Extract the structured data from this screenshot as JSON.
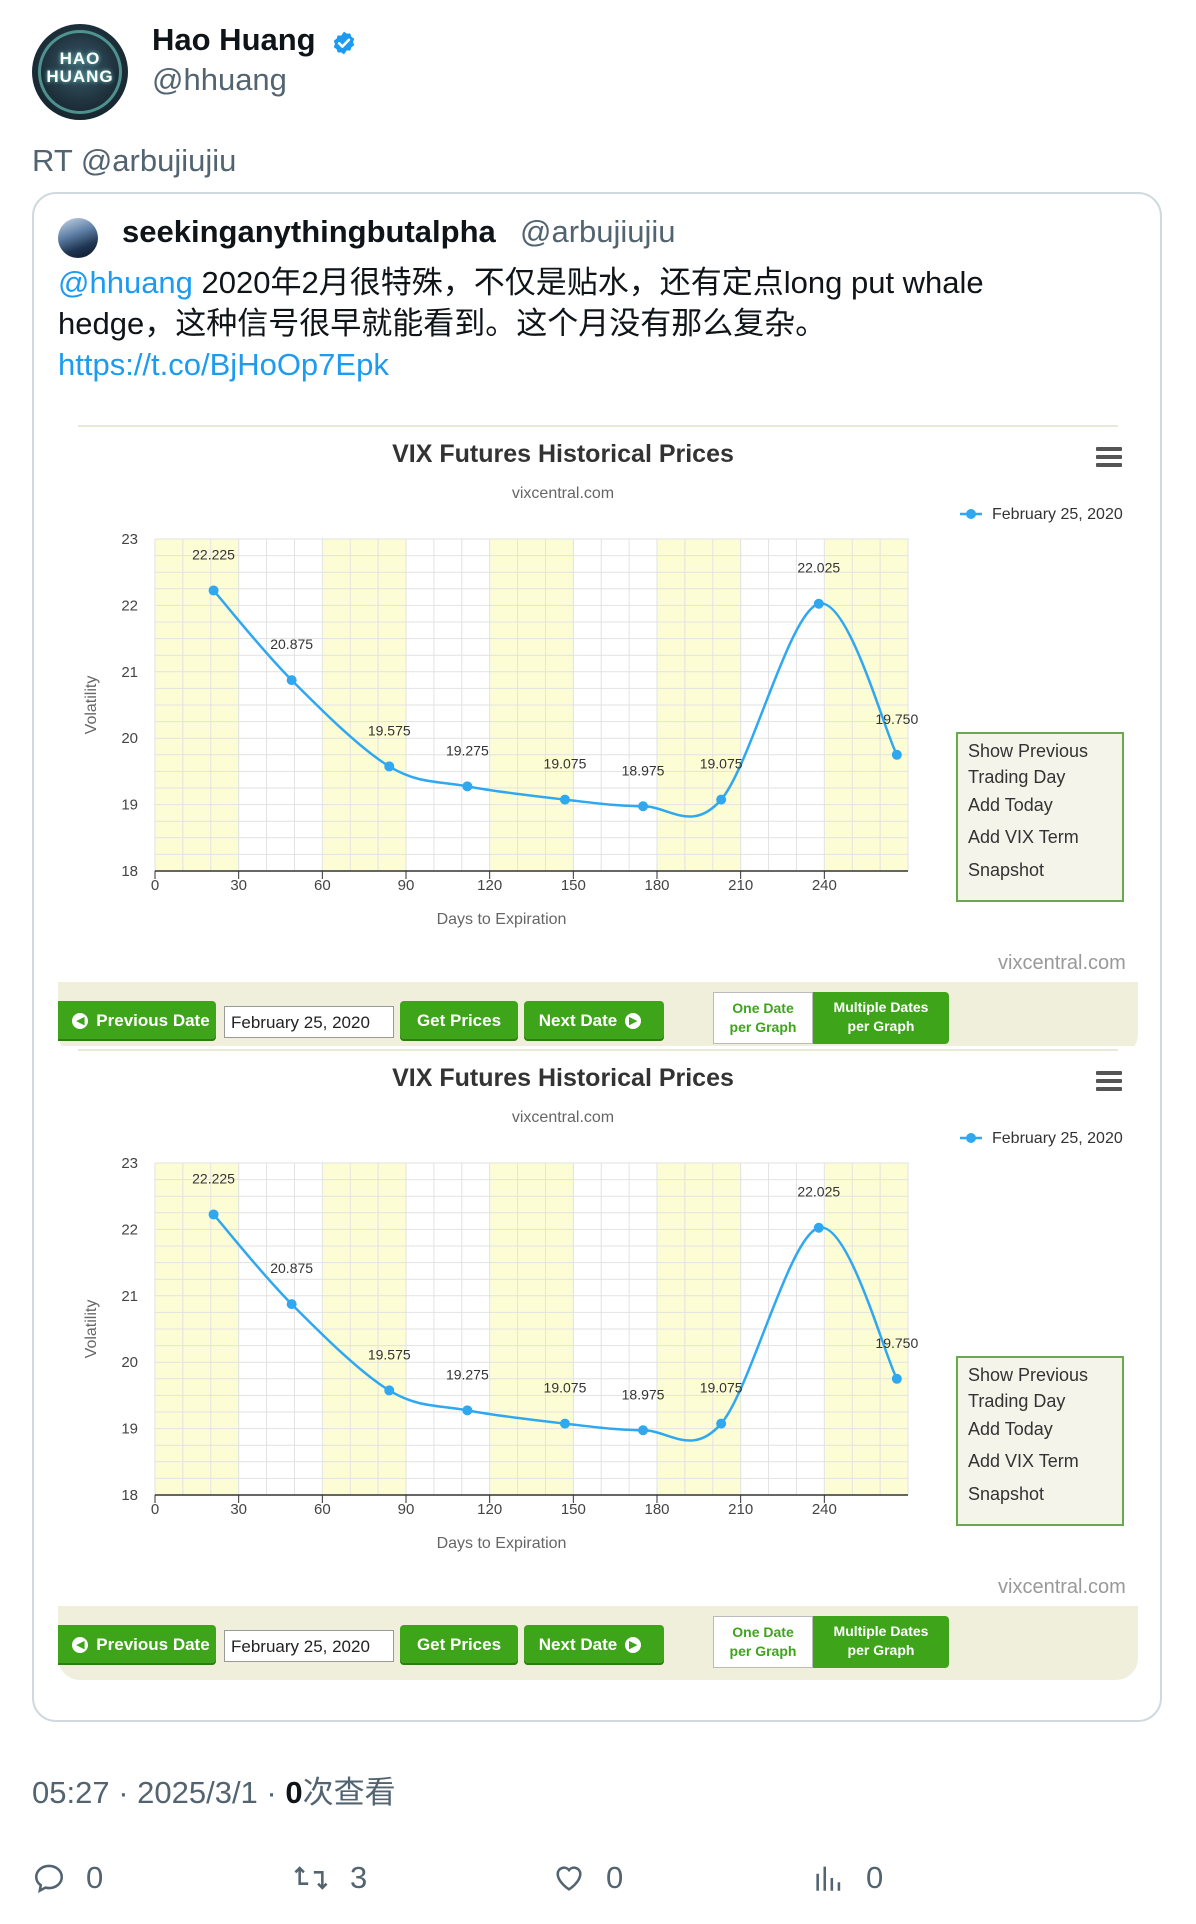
{
  "author": {
    "name": "Hao Huang",
    "handle": "@hhuang",
    "avatar_text_top": "HAO",
    "avatar_text_bottom": "HUANG",
    "verified_icon": "verified-badge-icon"
  },
  "retweet_label": "RT @arbujiujiu",
  "quoted": {
    "name": "seekinganythingbutalpha",
    "handle": "@arbujiujiu",
    "mention": "@hhuang",
    "text_line1": " 2020年2月很特殊，不仅是贴水，还有定点long put whale",
    "text_line2": "hedge，这种信号很早就能看到。这个月没有那么复杂。",
    "link": "https://t.co/BjHoOp7Epk"
  },
  "chart_widget": {
    "title": "VIX Futures Historical Prices",
    "subtitle": "vixcentral.com",
    "credit": "vixcentral.com",
    "menu_icon": "hamburger-menu-icon",
    "range_options": [
      "Show Previous",
      "Trading Day",
      "Add Today",
      "Add VIX Term",
      "Snapshot"
    ],
    "nav": {
      "previous_label": "Previous Date",
      "date_value": "February 25, 2020",
      "get_prices_label": "Get Prices",
      "next_label": "Next Date",
      "one_date_label_1": "One Date",
      "one_date_label_2": "per Graph",
      "multiple_label_1": "Multiple Dates",
      "multiple_label_2": "per Graph"
    }
  },
  "chart_data": [
    {
      "type": "line",
      "title": "VIX Futures Historical Prices",
      "subtitle": "vixcentral.com",
      "xlabel": "Days to Expiration",
      "ylabel": "Volatility",
      "xlim": [
        0,
        270
      ],
      "ylim": [
        18,
        23
      ],
      "x_ticks": [
        0,
        30,
        60,
        90,
        120,
        150,
        180,
        210,
        240
      ],
      "y_ticks": [
        18,
        19,
        20,
        21,
        22,
        23
      ],
      "legend_position": "top-right",
      "color": "#2fa8f0",
      "grid": true,
      "series": [
        {
          "name": "February 25, 2020",
          "x": [
            21,
            49,
            84,
            112,
            147,
            175,
            203,
            238,
            266
          ],
          "values": [
            22.225,
            20.875,
            19.575,
            19.275,
            19.075,
            18.975,
            19.075,
            22.025,
            19.75
          ]
        }
      ]
    },
    {
      "type": "line",
      "title": "VIX Futures Historical Prices",
      "subtitle": "vixcentral.com",
      "xlabel": "Days to Expiration",
      "ylabel": "Volatility",
      "xlim": [
        0,
        270
      ],
      "ylim": [
        18,
        23
      ],
      "x_ticks": [
        0,
        30,
        60,
        90,
        120,
        150,
        180,
        210,
        240
      ],
      "y_ticks": [
        18,
        19,
        20,
        21,
        22,
        23
      ],
      "legend_position": "top-right",
      "color": "#2fa8f0",
      "grid": true,
      "series": [
        {
          "name": "February 25, 2020",
          "x": [
            21,
            49,
            84,
            112,
            147,
            175,
            203,
            238,
            266
          ],
          "values": [
            22.225,
            20.875,
            19.575,
            19.275,
            19.075,
            18.975,
            19.075,
            22.025,
            19.75
          ]
        }
      ]
    }
  ],
  "footer": {
    "time": "05:27 · 2025/3/1 · ",
    "views_count": "0",
    "views_label": "次查看"
  },
  "actions": {
    "replies": "0",
    "retweets": "3",
    "likes": "0",
    "views": "0"
  }
}
